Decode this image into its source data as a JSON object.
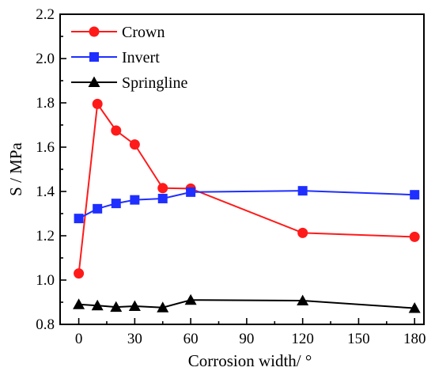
{
  "chart_data": {
    "type": "line",
    "xlabel": "Corrosion width/ °",
    "ylabel": "S / MPa",
    "xlim": [
      -10,
      185
    ],
    "ylim": [
      0.8,
      2.2
    ],
    "xticks": [
      0,
      30,
      60,
      90,
      120,
      150,
      180
    ],
    "yticks": [
      0.8,
      1.0,
      1.2,
      1.4,
      1.6,
      1.8,
      2.0,
      2.2
    ],
    "x": [
      0,
      10,
      20,
      30,
      45,
      60,
      120,
      180
    ],
    "legend_position": "top-left",
    "series": [
      {
        "name": "Crown",
        "color": "#ff1a1a",
        "marker": "circle",
        "values": [
          1.03,
          1.795,
          1.675,
          1.612,
          1.415,
          1.413,
          1.213,
          1.195
        ]
      },
      {
        "name": "Invert",
        "color": "#1f2fff",
        "marker": "square",
        "values": [
          1.278,
          1.322,
          1.346,
          1.362,
          1.368,
          1.397,
          1.403,
          1.385
        ]
      },
      {
        "name": "Springline",
        "color": "#000000",
        "marker": "triangle",
        "values": [
          0.89,
          0.885,
          0.878,
          0.882,
          0.876,
          0.91,
          0.907,
          0.873
        ]
      }
    ]
  }
}
